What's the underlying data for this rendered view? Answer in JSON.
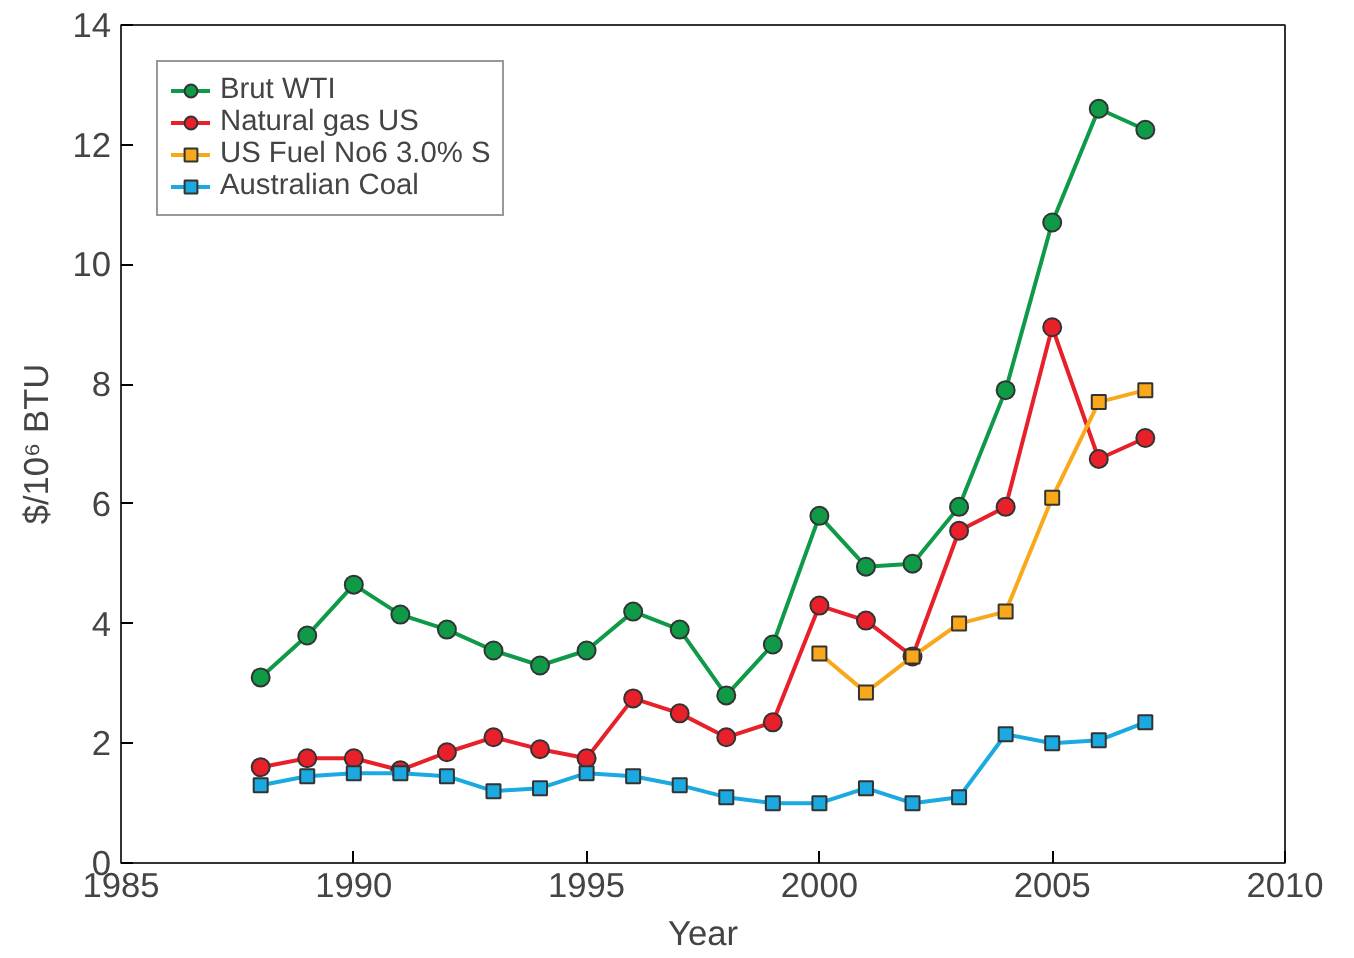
{
  "chart_data": {
    "type": "line",
    "xlabel": "Year",
    "ylabel": "$/10⁶ BTU",
    "x": [
      1988,
      1989,
      1990,
      1991,
      1992,
      1993,
      1994,
      1995,
      1996,
      1997,
      1998,
      1999,
      2000,
      2001,
      2002,
      2003,
      2004,
      2005,
      2006,
      2007
    ],
    "series": [
      {
        "name": "Brut WTI",
        "color": "#0f9a48",
        "marker": "circle",
        "values": [
          3.1,
          3.8,
          4.65,
          4.15,
          3.9,
          3.55,
          3.3,
          3.55,
          4.2,
          3.9,
          2.8,
          3.65,
          5.8,
          4.95,
          5.0,
          5.95,
          7.9,
          10.7,
          12.6,
          12.25
        ]
      },
      {
        "name": "Natural gas US",
        "color": "#e8202a",
        "marker": "circle",
        "values": [
          1.6,
          1.75,
          1.75,
          1.55,
          1.85,
          2.1,
          1.9,
          1.75,
          2.75,
          2.5,
          2.1,
          2.35,
          4.3,
          4.05,
          3.45,
          5.55,
          5.95,
          8.95,
          6.75,
          7.1
        ]
      },
      {
        "name": "US Fuel No6 3.0% S",
        "color": "#f9a81c",
        "marker": "square",
        "x": [
          2000,
          2001,
          2002,
          2003,
          2004,
          2005,
          2006,
          2007
        ],
        "values": [
          3.5,
          2.85,
          3.45,
          4.0,
          4.2,
          6.1,
          7.7,
          7.9
        ]
      },
      {
        "name": "Australian Coal",
        "color": "#1ba9e1",
        "marker": "square",
        "values": [
          1.3,
          1.45,
          1.5,
          1.5,
          1.45,
          1.2,
          1.25,
          1.5,
          1.45,
          1.3,
          1.1,
          1.0,
          1.0,
          1.25,
          1.0,
          1.1,
          2.15,
          2.0,
          2.05,
          2.35
        ]
      }
    ],
    "xlim": [
      1985,
      2010
    ],
    "xticks": [
      1985,
      1990,
      1995,
      2000,
      2005,
      2010
    ],
    "ylim": [
      0,
      14
    ],
    "yticks": [
      0,
      2,
      4,
      6,
      8,
      10,
      12,
      14
    ],
    "grid": false,
    "legend": "top left",
    "line_style": "solid"
  }
}
